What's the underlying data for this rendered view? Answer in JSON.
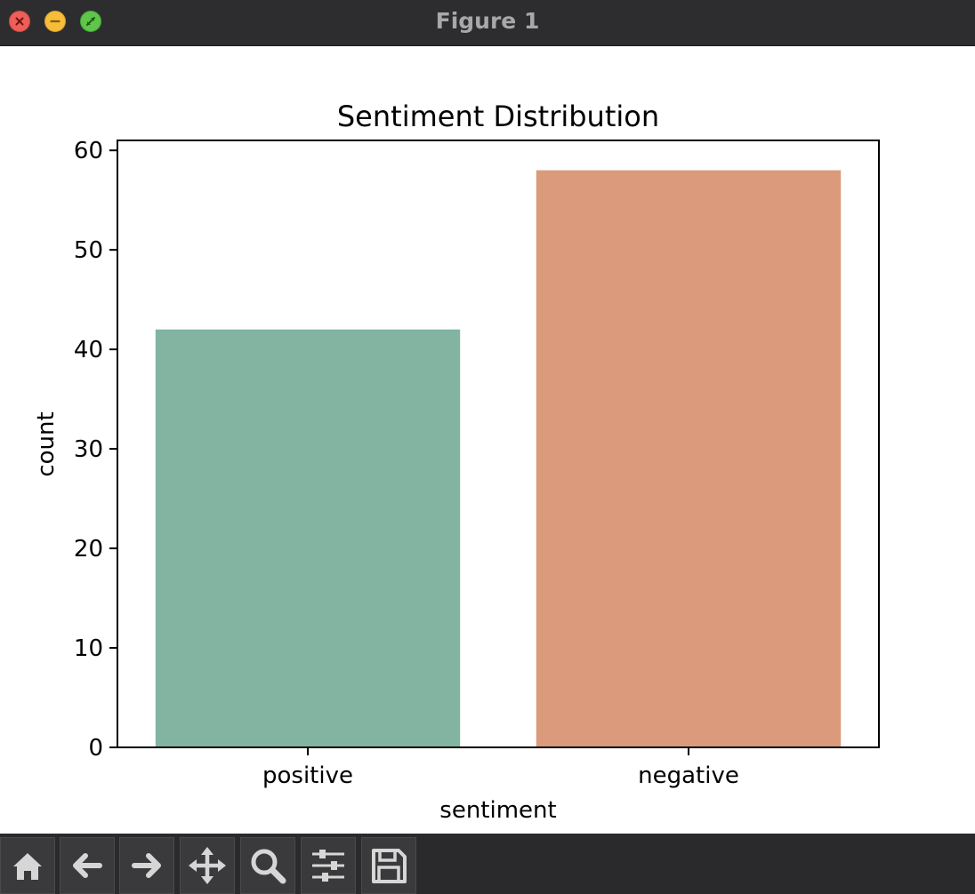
{
  "window": {
    "title": "Figure 1"
  },
  "toolbar": {
    "buttons": [
      {
        "icon": "home-icon"
      },
      {
        "icon": "back-arrow-icon"
      },
      {
        "icon": "forward-arrow-icon"
      },
      {
        "icon": "pan-move-icon"
      },
      {
        "icon": "zoom-magnifier-icon"
      },
      {
        "icon": "configure-subplots-icon"
      },
      {
        "icon": "save-floppy-icon"
      }
    ]
  },
  "colors": {
    "positive": "#82b4a1",
    "negative": "#db9a7b",
    "titlebar": "#2d2d2f",
    "toolbar": "#2a2a2c"
  },
  "chart_data": {
    "type": "bar",
    "title": "Sentiment Distribution",
    "xlabel": "sentiment",
    "ylabel": "count",
    "categories": [
      "positive",
      "negative"
    ],
    "values": [
      42,
      58
    ],
    "colors": [
      "#82b4a1",
      "#db9a7b"
    ],
    "ylim": [
      0,
      61
    ],
    "yticks": [
      0,
      10,
      20,
      30,
      40,
      50,
      60
    ],
    "grid": false,
    "legend": "none"
  }
}
